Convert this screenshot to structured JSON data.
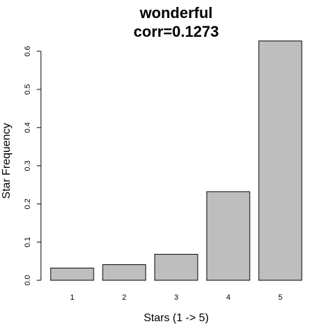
{
  "chart_data": {
    "type": "bar",
    "title": "wonderful",
    "subtitle": "corr=0.1273",
    "xlabel": "Stars (1 -> 5)",
    "ylabel": "Star Frequency",
    "categories": [
      "1",
      "2",
      "3",
      "4",
      "5"
    ],
    "values": [
      0.032,
      0.041,
      0.068,
      0.232,
      0.627
    ],
    "ylim": [
      0,
      0.627
    ],
    "yticks": [
      "0.0",
      "0.1",
      "0.2",
      "0.3",
      "0.4",
      "0.5",
      "0.6"
    ],
    "ytick_values": [
      0,
      0.1,
      0.2,
      0.3,
      0.4,
      0.5,
      0.6
    ],
    "bar_color": "#bebebe",
    "grid": false,
    "legend": "none"
  }
}
